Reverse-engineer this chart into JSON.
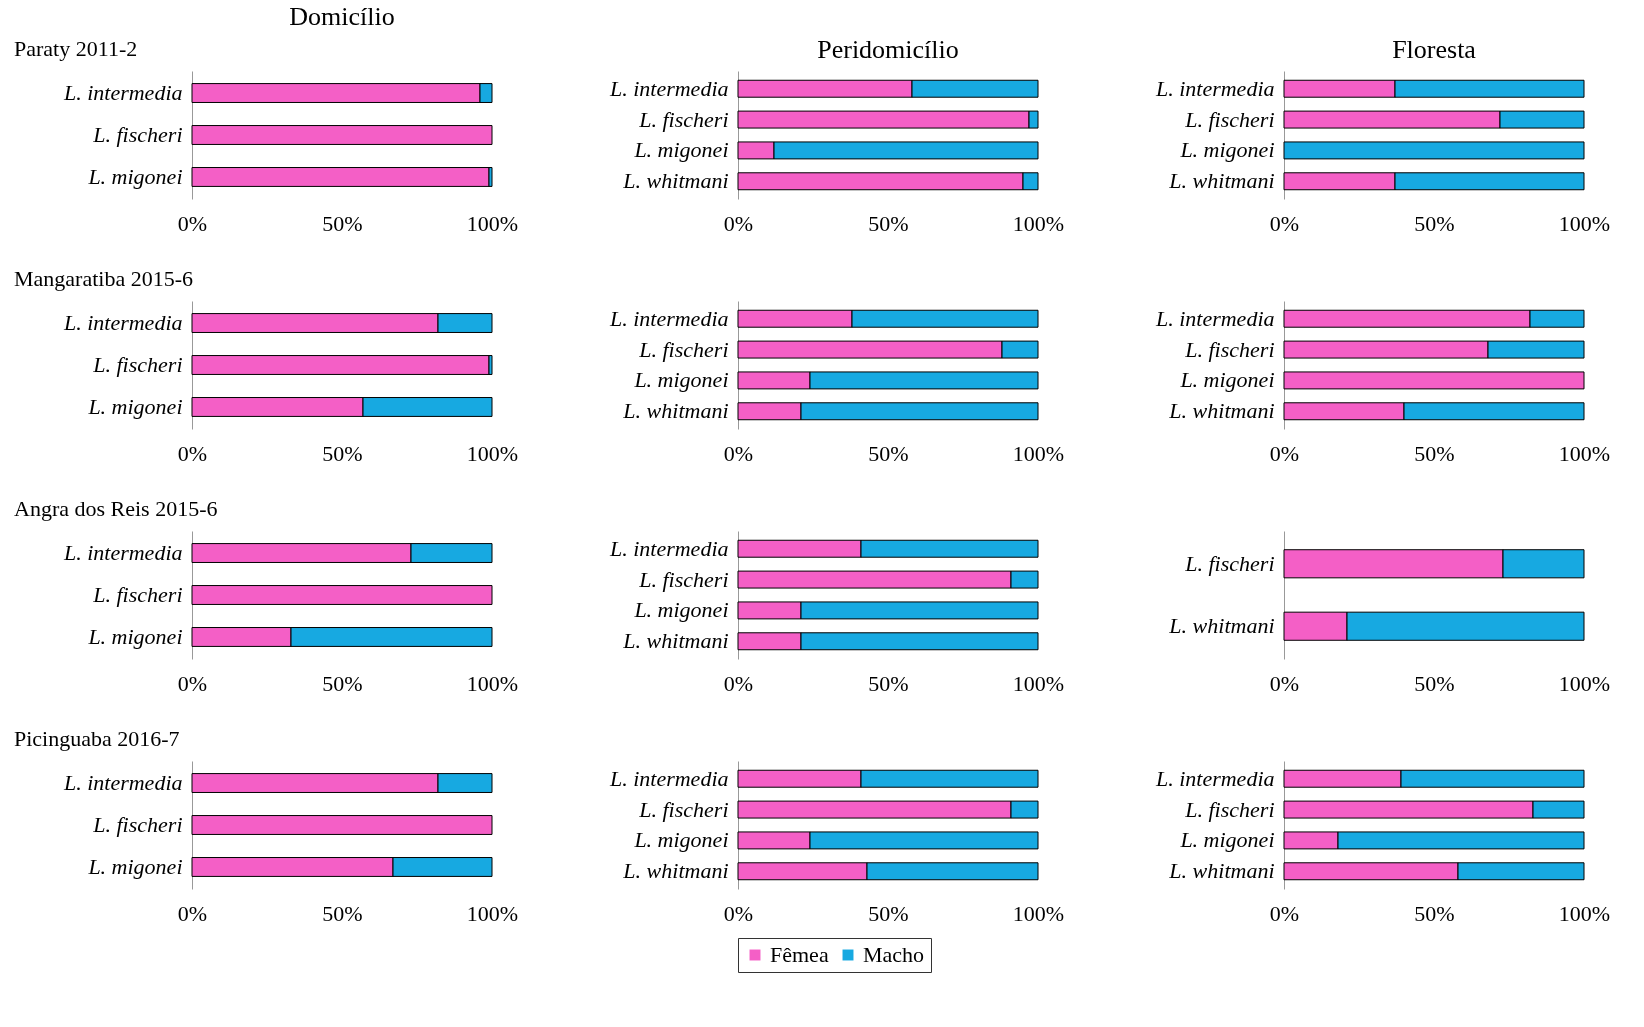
{
  "chart_data": [
    {
      "type": "bar",
      "title": "Domicílio",
      "annotations": [
        "Paraty 2011-2"
      ],
      "orientation": "horizontal",
      "stacked": true,
      "categories": [
        "L. intermedia",
        "L. fischeri",
        "L. migonei"
      ],
      "xlim": [
        0,
        1
      ],
      "xticks": [
        {
          "value": 0,
          "label": "0%"
        },
        {
          "value": 0.5,
          "label": "50%"
        },
        {
          "value": 1,
          "label": "100%"
        }
      ],
      "series": [
        {
          "color": "#f45fc6",
          "values": [
            0.96,
            1,
            0.99
          ]
        },
        {
          "color": "#17a9e1",
          "values": [
            0.04,
            0,
            0.01
          ]
        }
      ]
    },
    {
      "type": "bar",
      "title": "Peridomicílio",
      "orientation": "horizontal",
      "stacked": true,
      "categories": [
        "L. intermedia",
        "L. fischeri",
        "L. migonei",
        "L. whitmani"
      ],
      "xlim": [
        0,
        1
      ],
      "xticks": [
        {
          "value": 0,
          "label": "0%"
        },
        {
          "value": 0.5,
          "label": "50%"
        },
        {
          "value": 1,
          "label": "100%"
        }
      ],
      "series": [
        {
          "color": "#f45fc6",
          "values": [
            0.58,
            0.97,
            0.12,
            0.95
          ]
        },
        {
          "color": "#17a9e1",
          "values": [
            0.42,
            0.03,
            0.88,
            0.05
          ]
        }
      ]
    },
    {
      "type": "bar",
      "title": "Floresta",
      "orientation": "horizontal",
      "stacked": true,
      "categories": [
        "L. intermedia",
        "L. fischeri",
        "L. migonei",
        "L. whitmani"
      ],
      "xlim": [
        0,
        1
      ],
      "xticks": [
        {
          "value": 0,
          "label": "0%"
        },
        {
          "value": 0.5,
          "label": "50%"
        },
        {
          "value": 1,
          "label": "100%"
        }
      ],
      "series": [
        {
          "color": "#f45fc6",
          "values": [
            0.37,
            0.72,
            0,
            0.37
          ]
        },
        {
          "color": "#17a9e1",
          "values": [
            0.63,
            0.28,
            1,
            0.63
          ]
        }
      ]
    },
    {
      "type": "bar",
      "annotations": [
        "Mangaratiba 2015-6"
      ],
      "orientation": "horizontal",
      "stacked": true,
      "categories": [
        "L. intermedia",
        "L. fischeri",
        "L. migonei"
      ],
      "xlim": [
        0,
        1
      ],
      "xticks": [
        {
          "value": 0,
          "label": "0%"
        },
        {
          "value": 0.5,
          "label": "50%"
        },
        {
          "value": 1,
          "label": "100%"
        }
      ],
      "series": [
        {
          "color": "#f45fc6",
          "values": [
            0.82,
            0.99,
            0.57
          ]
        },
        {
          "color": "#17a9e1",
          "values": [
            0.18,
            0.01,
            0.43
          ]
        }
      ]
    },
    {
      "type": "bar",
      "orientation": "horizontal",
      "stacked": true,
      "categories": [
        "L. intermedia",
        "L. fischeri",
        "L. migonei",
        "L. whitmani"
      ],
      "xlim": [
        0,
        1
      ],
      "xticks": [
        {
          "value": 0,
          "label": "0%"
        },
        {
          "value": 0.5,
          "label": "50%"
        },
        {
          "value": 1,
          "label": "100%"
        }
      ],
      "series": [
        {
          "color": "#f45fc6",
          "values": [
            0.38,
            0.88,
            0.24,
            0.21
          ]
        },
        {
          "color": "#17a9e1",
          "values": [
            0.62,
            0.12,
            0.76,
            0.79
          ]
        }
      ]
    },
    {
      "type": "bar",
      "orientation": "horizontal",
      "stacked": true,
      "categories": [
        "L. intermedia",
        "L. fischeri",
        "L. migonei",
        "L. whitmani"
      ],
      "xlim": [
        0,
        1
      ],
      "xticks": [
        {
          "value": 0,
          "label": "0%"
        },
        {
          "value": 0.5,
          "label": "50%"
        },
        {
          "value": 1,
          "label": "100%"
        }
      ],
      "series": [
        {
          "color": "#f45fc6",
          "values": [
            0.82,
            0.68,
            1,
            0.4
          ]
        },
        {
          "color": "#17a9e1",
          "values": [
            0.18,
            0.32,
            0,
            0.6
          ]
        }
      ]
    },
    {
      "type": "bar",
      "annotations": [
        "Angra dos Reis 2015-6"
      ],
      "orientation": "horizontal",
      "stacked": true,
      "categories": [
        "L. intermedia",
        "L. fischeri",
        "L. migonei"
      ],
      "xlim": [
        0,
        1
      ],
      "xticks": [
        {
          "value": 0,
          "label": "0%"
        },
        {
          "value": 0.5,
          "label": "50%"
        },
        {
          "value": 1,
          "label": "100%"
        }
      ],
      "series": [
        {
          "color": "#f45fc6",
          "values": [
            0.73,
            1,
            0.33
          ]
        },
        {
          "color": "#17a9e1",
          "values": [
            0.27,
            0,
            0.67
          ]
        }
      ]
    },
    {
      "type": "bar",
      "orientation": "horizontal",
      "stacked": true,
      "categories": [
        "L. intermedia",
        "L. fischeri",
        "L. migonei",
        "L. whitmani"
      ],
      "xlim": [
        0,
        1
      ],
      "xticks": [
        {
          "value": 0,
          "label": "0%"
        },
        {
          "value": 0.5,
          "label": "50%"
        },
        {
          "value": 1,
          "label": "100%"
        }
      ],
      "series": [
        {
          "color": "#f45fc6",
          "values": [
            0.41,
            0.91,
            0.21,
            0.21
          ]
        },
        {
          "color": "#17a9e1",
          "values": [
            0.59,
            0.09,
            0.79,
            0.79
          ]
        }
      ]
    },
    {
      "type": "bar",
      "orientation": "horizontal",
      "stacked": true,
      "categories": [
        "L. fischeri",
        "L. whitmani"
      ],
      "xlim": [
        0,
        1
      ],
      "xticks": [
        {
          "value": 0,
          "label": "0%"
        },
        {
          "value": 0.5,
          "label": "50%"
        },
        {
          "value": 1,
          "label": "100%"
        }
      ],
      "series": [
        {
          "color": "#f45fc6",
          "values": [
            0.73,
            0.21
          ]
        },
        {
          "color": "#17a9e1",
          "values": [
            0.27,
            0.79
          ]
        }
      ]
    },
    {
      "type": "bar",
      "annotations": [
        "Picinguaba 2016-7"
      ],
      "orientation": "horizontal",
      "stacked": true,
      "categories": [
        "L. intermedia",
        "L. fischeri",
        "L. migonei"
      ],
      "xlim": [
        0,
        1
      ],
      "xticks": [
        {
          "value": 0,
          "label": "0%"
        },
        {
          "value": 0.5,
          "label": "50%"
        },
        {
          "value": 1,
          "label": "100%"
        }
      ],
      "series": [
        {
          "color": "#f45fc6",
          "values": [
            0.82,
            1,
            0.67
          ]
        },
        {
          "color": "#17a9e1",
          "values": [
            0.18,
            0,
            0.33
          ]
        }
      ]
    },
    {
      "type": "bar",
      "orientation": "horizontal",
      "stacked": true,
      "categories": [
        "L. intermedia",
        "L. fischeri",
        "L. migonei",
        "L. whitmani"
      ],
      "xlim": [
        0,
        1
      ],
      "xticks": [
        {
          "value": 0,
          "label": "0%"
        },
        {
          "value": 0.5,
          "label": "50%"
        },
        {
          "value": 1,
          "label": "100%"
        }
      ],
      "legend": "bottom",
      "series": [
        {
          "name": "Fêmea",
          "color": "#f45fc6",
          "values": [
            0.41,
            0.91,
            0.24,
            0.43
          ]
        },
        {
          "name": "Macho",
          "color": "#17a9e1",
          "values": [
            0.59,
            0.09,
            0.76,
            0.57
          ]
        }
      ]
    },
    {
      "type": "bar",
      "orientation": "horizontal",
      "stacked": true,
      "categories": [
        "L. intermedia",
        "L. fischeri",
        "L. migonei",
        "L. whitmani"
      ],
      "xlim": [
        0,
        1
      ],
      "xticks": [
        {
          "value": 0,
          "label": "0%"
        },
        {
          "value": 0.5,
          "label": "50%"
        },
        {
          "value": 1,
          "label": "100%"
        }
      ],
      "series": [
        {
          "color": "#f45fc6",
          "values": [
            0.39,
            0.83,
            0.18,
            0.58
          ]
        },
        {
          "color": "#17a9e1",
          "values": [
            0.61,
            0.17,
            0.82,
            0.42
          ]
        }
      ]
    }
  ]
}
